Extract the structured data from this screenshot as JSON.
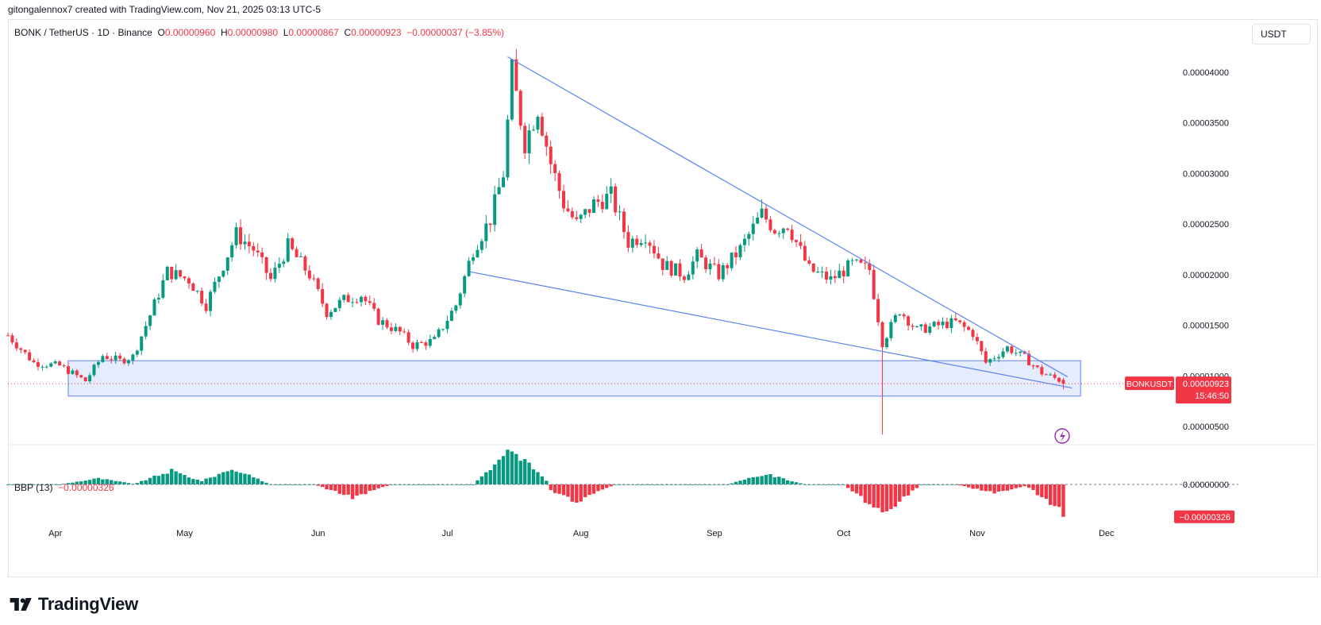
{
  "byline": "gitongalennox7 created with TradingView.com, Nov 21, 2025 03:13 UTC-5",
  "legend": {
    "symbol": "BONK / TetherUS · 1D · Binance",
    "o_label": "O",
    "o": "0.00000960",
    "h_label": "H",
    "h": "0.00000980",
    "l_label": "L",
    "l": "0.00000867",
    "c_label": "C",
    "c": "0.00000923",
    "change": "−0.00000037 (−3.85%)"
  },
  "currency": "USDT",
  "price_label": {
    "symbol": "BONKUSDT",
    "price": "0.00000923",
    "countdown": "15:46:50"
  },
  "bbp": {
    "name": "BBP (13)",
    "value": "−0.00000326",
    "zero_label": "0.00000000"
  },
  "logo_text": "TradingView",
  "colors": {
    "up": "#089981",
    "down": "#f23645",
    "line": "#5b83f0",
    "box": "#dce6fd"
  },
  "chart_data": {
    "type": "candlestick",
    "y_ticks": [
      "0.00004000",
      "0.00003500",
      "0.00003000",
      "0.00002500",
      "0.00002000",
      "0.00001500",
      "0.00001000",
      "0.00000500"
    ],
    "y_tick_values": [
      4e-05,
      3.5e-05,
      3e-05,
      2.5e-05,
      2e-05,
      1.5e-05,
      1e-05,
      5e-06
    ],
    "ylim": [
      3.2e-06,
      4.508e-05
    ],
    "x_ticks": [
      "Apr",
      "May",
      "Jun",
      "Jul",
      "Aug",
      "Sep",
      "Oct",
      "Nov",
      "Dec"
    ],
    "x_tick_dates": [
      "2025-04-01",
      "2025-05-01",
      "2025-06-01",
      "2025-07-01",
      "2025-08-01",
      "2025-09-01",
      "2025-10-01",
      "2025-11-01",
      "2025-12-01"
    ],
    "date_range": [
      "2025-03-21",
      "2025-12-04"
    ],
    "key_closes": [
      [
        "2025-03-21",
        1.4e-05
      ],
      [
        "2025-03-27",
        1.13e-05
      ],
      [
        "2025-04-02",
        1.1e-05
      ],
      [
        "2025-04-08",
        9.5e-06
      ],
      [
        "2025-04-12",
        1.2e-05
      ],
      [
        "2025-04-16",
        1.15e-05
      ],
      [
        "2025-04-19",
        1.19e-05
      ],
      [
        "2025-04-23",
        1.6e-05
      ],
      [
        "2025-04-27",
        2.03e-05
      ],
      [
        "2025-05-02",
        1.95e-05
      ],
      [
        "2025-05-06",
        1.7e-05
      ],
      [
        "2025-05-10",
        2.1e-05
      ],
      [
        "2025-05-13",
        2.4e-05
      ],
      [
        "2025-05-17",
        2.25e-05
      ],
      [
        "2025-05-21",
        1.95e-05
      ],
      [
        "2025-05-25",
        2.28e-05
      ],
      [
        "2025-05-30",
        2e-05
      ],
      [
        "2025-06-03",
        1.63e-05
      ],
      [
        "2025-06-07",
        1.75e-05
      ],
      [
        "2025-06-11",
        1.8e-05
      ],
      [
        "2025-06-15",
        1.55e-05
      ],
      [
        "2025-06-20",
        1.43e-05
      ],
      [
        "2025-06-23",
        1.3e-05
      ],
      [
        "2025-06-28",
        1.35e-05
      ],
      [
        "2025-07-03",
        1.7e-05
      ],
      [
        "2025-07-07",
        2.25e-05
      ],
      [
        "2025-07-11",
        2.55e-05
      ],
      [
        "2025-07-14",
        3e-05
      ],
      [
        "2025-07-16",
        4e-05
      ],
      [
        "2025-07-19",
        3.3e-05
      ],
      [
        "2025-07-22",
        3.65e-05
      ],
      [
        "2025-07-25",
        3.1e-05
      ],
      [
        "2025-07-28",
        2.7e-05
      ],
      [
        "2025-07-31",
        2.5e-05
      ],
      [
        "2025-08-04",
        2.7e-05
      ],
      [
        "2025-08-08",
        2.78e-05
      ],
      [
        "2025-08-12",
        2.32e-05
      ],
      [
        "2025-08-16",
        2.4e-05
      ],
      [
        "2025-08-20",
        2.1e-05
      ],
      [
        "2025-08-25",
        2e-05
      ],
      [
        "2025-08-28",
        2.18e-05
      ],
      [
        "2025-09-02",
        2e-05
      ],
      [
        "2025-09-07",
        2.25e-05
      ],
      [
        "2025-09-12",
        2.6e-05
      ],
      [
        "2025-09-15",
        2.45e-05
      ],
      [
        "2025-09-18",
        2.5e-05
      ],
      [
        "2025-09-23",
        2.05e-05
      ],
      [
        "2025-09-28",
        1.95e-05
      ],
      [
        "2025-10-03",
        2.1e-05
      ],
      [
        "2025-10-07",
        2.05e-05
      ],
      [
        "2025-10-10",
        1.33e-05
      ],
      [
        "2025-10-14",
        1.65e-05
      ],
      [
        "2025-10-18",
        1.45e-05
      ],
      [
        "2025-10-23",
        1.5e-05
      ],
      [
        "2025-10-27",
        1.53e-05
      ],
      [
        "2025-10-31",
        1.42e-05
      ],
      [
        "2025-11-03",
        1.13e-05
      ],
      [
        "2025-11-08",
        1.28e-05
      ],
      [
        "2025-11-12",
        1.18e-05
      ],
      [
        "2025-11-16",
        1.03e-05
      ],
      [
        "2025-11-20",
        9.6e-06
      ],
      [
        "2025-11-21",
        9.23e-06
      ]
    ],
    "flash_wick": {
      "date": "2025-10-10",
      "low": 4.2e-06
    },
    "trendlines": [
      {
        "from": [
          "2025-07-15",
          4.15e-05
        ],
        "to": [
          "2025-11-22",
          9.9e-06
        ]
      },
      {
        "from": [
          "2025-07-06",
          2.03e-05
        ],
        "to": [
          "2025-11-23",
          8.8e-06
        ]
      }
    ],
    "support_zone": {
      "from": "2025-04-04",
      "to": "2025-11-25",
      "top": 1.15e-05,
      "bottom": 8e-06
    },
    "current_price": 9.23e-06,
    "bbp_ylim": [
      -3.6e-06,
      4e-06
    ],
    "bbp_peaks": [
      [
        "2025-04-11",
        7e-07
      ],
      [
        "2025-04-28",
        1.6e-06
      ],
      [
        "2025-05-12",
        1.8e-06
      ],
      [
        "2025-06-09",
        -1.5e-06
      ],
      [
        "2025-07-16",
        4e-06
      ],
      [
        "2025-07-31",
        -2e-06
      ],
      [
        "2025-09-13",
        1.2e-06
      ],
      [
        "2025-10-10",
        -3.4e-06
      ],
      [
        "2025-11-05",
        -1e-06
      ],
      [
        "2025-11-21",
        -3.26e-06
      ]
    ]
  }
}
